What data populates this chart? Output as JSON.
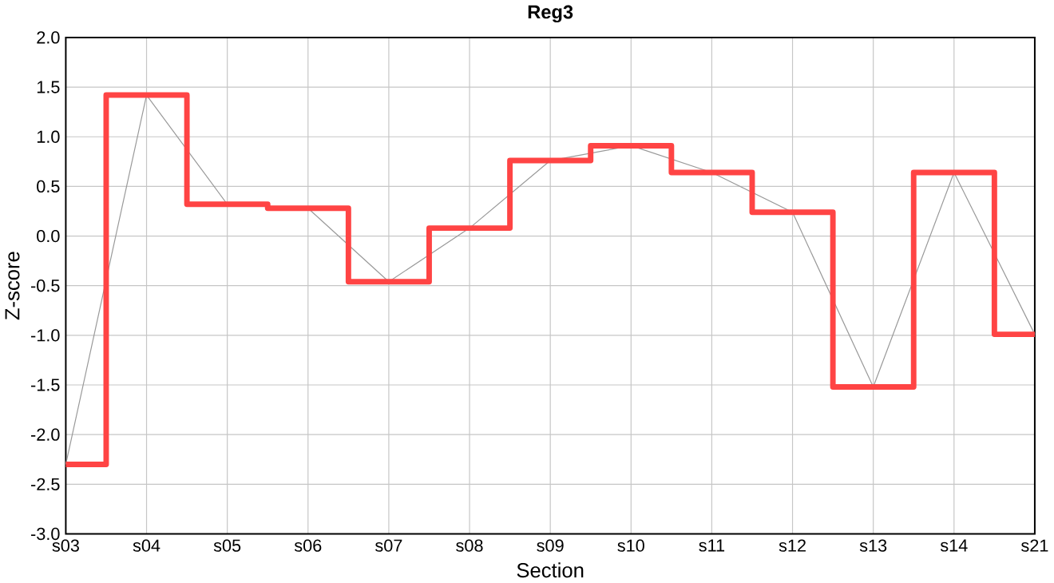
{
  "chart_data": {
    "type": "step",
    "title": "Reg3",
    "xlabel": "Section",
    "ylabel": "Z-score",
    "categories": [
      "s03",
      "s04",
      "s05",
      "s06",
      "s07",
      "s08",
      "s09",
      "s10",
      "s11",
      "s12",
      "s13",
      "s14",
      "s21"
    ],
    "series": [
      {
        "type": "line",
        "color": "#999999",
        "values": [
          -2.3,
          1.42,
          0.32,
          0.28,
          -0.46,
          0.08,
          0.76,
          0.91,
          0.64,
          0.24,
          -1.52,
          0.64,
          -0.99
        ]
      },
      {
        "color": "#ff4444",
        "values": [
          -2.3,
          1.42,
          0.32,
          0.28,
          -0.46,
          0.08,
          0.76,
          0.91,
          0.64,
          0.24,
          -1.52,
          0.64,
          -0.99
        ]
      }
    ],
    "ylim": [
      -3.0,
      2.0
    ],
    "yticks": [
      {
        "value": -3,
        "label": "-3.0"
      },
      {
        "value": -2.5,
        "label": "-2.5"
      },
      {
        "value": -2,
        "label": "-2.0"
      },
      {
        "value": -1.5,
        "label": "-1.5"
      },
      {
        "value": -1,
        "label": "-1.0"
      },
      {
        "value": -0.5,
        "label": "-0.5"
      },
      {
        "value": 0,
        "label": "0.0"
      },
      {
        "value": 0.5,
        "label": "0.5"
      },
      {
        "value": 1,
        "label": "1.0"
      },
      {
        "value": 1.5,
        "label": "1.5"
      },
      {
        "value": 2,
        "label": "2.0"
      }
    ],
    "grid": true,
    "marker": "none"
  }
}
